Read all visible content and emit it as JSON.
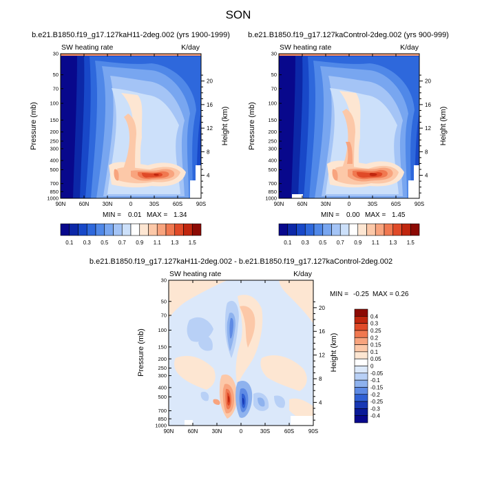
{
  "figure_title": "SON",
  "chart_data": [
    {
      "type": "heatmap",
      "title": "b.e21.B1850.f19_g17.127kaH11-2deg.002 (yrs 1900-1999)",
      "left_label": "SW heating rate",
      "right_label": "K/day",
      "xlabel": "",
      "ylabel": "Pressure (mb)",
      "ylabel_right": "Height (km)",
      "x_ticks": [
        "90N",
        "60N",
        "30N",
        "0",
        "30S",
        "60S",
        "90S"
      ],
      "y_ticks": [
        "30",
        "50",
        "70",
        "100",
        "150",
        "200",
        "250",
        "300",
        "400",
        "500",
        "700",
        "850",
        "1000"
      ],
      "y_ticks_right": [
        "20",
        "16",
        "12",
        "8",
        "4"
      ],
      "min_label": "MIN =",
      "min": "0.01",
      "max_label": "MAX =",
      "max": "1.34",
      "colorbar": {
        "orientation": "horizontal",
        "labels": [
          "0.1",
          "0.3",
          "0.5",
          "0.7",
          "0.9",
          "1.1",
          "1.3",
          "1.5"
        ],
        "colors": [
          "#08088c",
          "#0c28a8",
          "#1848c8",
          "#2e68dc",
          "#5088e8",
          "#78a6f0",
          "#a4c4f6",
          "#cce0fa",
          "#ffffff",
          "#fde6d2",
          "#fcc8a8",
          "#f8a47e",
          "#f07850",
          "#e04a28",
          "#c0260e",
          "#8c0a04"
        ]
      }
    },
    {
      "type": "heatmap",
      "title": "b.e21.B1850.f19_g17.127kaControl-2deg.002 (yrs 900-999)",
      "left_label": "SW heating rate",
      "right_label": "K/day",
      "xlabel": "",
      "ylabel": "Pressure (mb)",
      "ylabel_right": "Height (km)",
      "x_ticks": [
        "90N",
        "60N",
        "30N",
        "0",
        "30S",
        "60S",
        "90S"
      ],
      "y_ticks": [
        "30",
        "50",
        "70",
        "100",
        "150",
        "200",
        "250",
        "300",
        "400",
        "500",
        "700",
        "850",
        "1000"
      ],
      "y_ticks_right": [
        "20",
        "16",
        "12",
        "8",
        "4"
      ],
      "min_label": "MIN =",
      "min": "0.00",
      "max_label": "MAX =",
      "max": "1.45",
      "colorbar": {
        "orientation": "horizontal",
        "labels": [
          "0.1",
          "0.3",
          "0.5",
          "0.7",
          "0.9",
          "1.1",
          "1.3",
          "1.5"
        ],
        "colors": [
          "#08088c",
          "#0c28a8",
          "#1848c8",
          "#2e68dc",
          "#5088e8",
          "#78a6f0",
          "#a4c4f6",
          "#cce0fa",
          "#ffffff",
          "#fde6d2",
          "#fcc8a8",
          "#f8a47e",
          "#f07850",
          "#e04a28",
          "#c0260e",
          "#8c0a04"
        ]
      }
    },
    {
      "type": "heatmap",
      "title": "b.e21.B1850.f19_g17.127kaH11-2deg.002 - b.e21.B1850.f19_g17.127kaControl-2deg.002",
      "left_label": "SW heating rate",
      "right_label": "K/day",
      "xlabel": "",
      "ylabel": "Pressure (mb)",
      "ylabel_right": "Height (km)",
      "x_ticks": [
        "90N",
        "60N",
        "30N",
        "0",
        "30S",
        "60S",
        "90S"
      ],
      "y_ticks": [
        "30",
        "50",
        "70",
        "100",
        "150",
        "200",
        "250",
        "300",
        "400",
        "500",
        "700",
        "850",
        "1000"
      ],
      "y_ticks_right": [
        "20",
        "16",
        "12",
        "8",
        "4"
      ],
      "min_label": "MIN =",
      "min": "-0.25",
      "max_label": "MAX =",
      "max": "0.26",
      "colorbar": {
        "orientation": "vertical",
        "labels": [
          "0.4",
          "0.3",
          "0.25",
          "0.2",
          "0.15",
          "0.1",
          "0.05",
          "0",
          "-0.05",
          "-0.1",
          "-0.15",
          "-0.2",
          "-0.25",
          "-0.3",
          "-0.4"
        ],
        "colors": [
          "#8c0a04",
          "#c0260e",
          "#e04a28",
          "#f07850",
          "#f8a47e",
          "#fcc8a8",
          "#fde6d2",
          "#ffffff",
          "#dbe8fa",
          "#b8d0f6",
          "#8eb2ee",
          "#5e8ae4",
          "#3060d4",
          "#1838b4",
          "#0a1a98",
          "#08088c"
        ]
      }
    }
  ]
}
